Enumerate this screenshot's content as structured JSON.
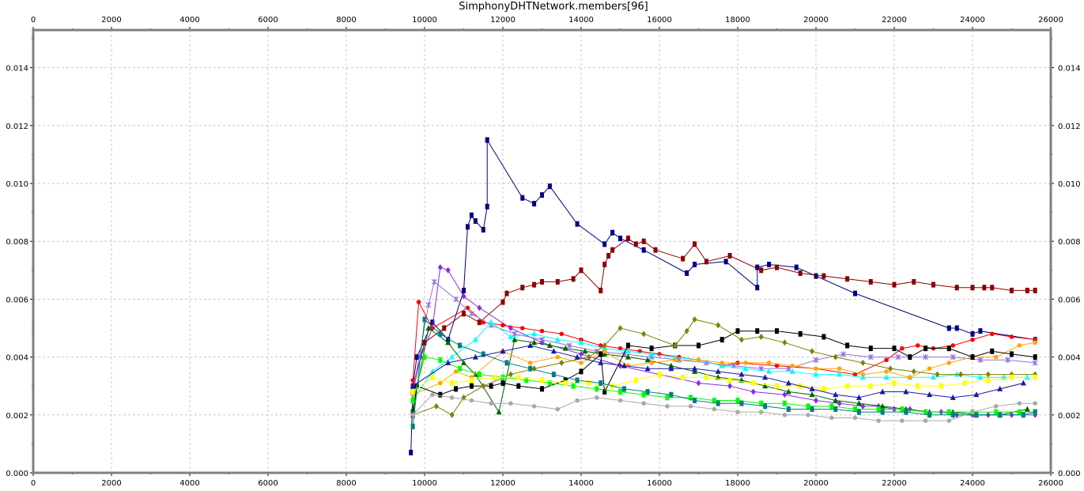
{
  "chart_data": {
    "type": "line",
    "title": "SimphonyDHTNetwork.members[96]",
    "xlabel": "",
    "ylabel": "",
    "xlim": [
      0,
      26000
    ],
    "ylim": [
      0,
      0.0153
    ],
    "x_ticks": [
      "0",
      "2000",
      "4000",
      "6000",
      "8000",
      "10000",
      "12000",
      "14000",
      "16000",
      "18000",
      "20000",
      "22000",
      "24000",
      "26000"
    ],
    "y_ticks": [
      "0.000",
      "0.002",
      "0.004",
      "0.006",
      "0.008",
      "0.010",
      "0.012",
      "0.014"
    ],
    "grid": true,
    "legend": "none",
    "frame_color": "#808080",
    "series": [
      {
        "color": "#00007f",
        "marker": "square",
        "x": [
          9650,
          9700,
          9800,
          10200,
          10600,
          11000,
          11100,
          11200,
          11300,
          11500,
          11600,
          11600,
          12500,
          12800,
          13000,
          13200,
          13900,
          14600,
          14800,
          15000,
          15600,
          16700,
          16900,
          17700,
          18500,
          18500,
          18800,
          19500,
          20000,
          21000,
          23400,
          23600,
          24000,
          24200,
          25600
        ],
        "y": [
          0.0007,
          0.003,
          0.004,
          0.0052,
          0.0046,
          0.0063,
          0.0085,
          0.0089,
          0.0087,
          0.0084,
          0.0092,
          0.0115,
          0.0095,
          0.0093,
          0.0096,
          0.0099,
          0.0086,
          0.0079,
          0.0083,
          0.0081,
          0.0077,
          0.0069,
          0.0072,
          0.0073,
          0.0064,
          0.0071,
          0.0072,
          0.0071,
          0.0068,
          0.0062,
          0.005,
          0.005,
          0.0048,
          0.0049,
          0.0046
        ]
      },
      {
        "color": "#8b0000",
        "marker": "square",
        "x": [
          9700,
          10000,
          10500,
          11000,
          11400,
          12000,
          12100,
          12500,
          12800,
          13000,
          13400,
          13800,
          14000,
          14500,
          14600,
          14700,
          14800,
          15200,
          15400,
          15600,
          15900,
          16600,
          16900,
          17200,
          17800,
          18600,
          19000,
          19600,
          20200,
          20800,
          21400,
          22000,
          22500,
          23000,
          23600,
          24000,
          24300,
          24500,
          25000,
          25400,
          25600
        ],
        "y": [
          0.003,
          0.0045,
          0.005,
          0.0055,
          0.0052,
          0.0059,
          0.0062,
          0.0064,
          0.0065,
          0.0066,
          0.0066,
          0.0067,
          0.007,
          0.0063,
          0.0072,
          0.0075,
          0.0077,
          0.0081,
          0.0079,
          0.008,
          0.0077,
          0.0074,
          0.0079,
          0.0073,
          0.0075,
          0.007,
          0.0071,
          0.0069,
          0.0068,
          0.0067,
          0.0066,
          0.0065,
          0.0066,
          0.0065,
          0.0064,
          0.0064,
          0.0064,
          0.0064,
          0.0063,
          0.0063,
          0.0063
        ]
      },
      {
        "color": "#8b2be2",
        "marker": "diamond",
        "x": [
          9700,
          9900,
          10200,
          10400,
          10600,
          11000,
          11400,
          12200,
          13000,
          14000,
          15000,
          16000,
          17000,
          17800,
          18400,
          19200,
          20000,
          20600,
          21200,
          21600,
          22000,
          22400,
          22800,
          23200,
          23600,
          24000,
          24400,
          25000,
          25600
        ],
        "y": [
          0.0028,
          0.004,
          0.005,
          0.0071,
          0.007,
          0.0061,
          0.0057,
          0.005,
          0.0045,
          0.0041,
          0.0037,
          0.0034,
          0.0031,
          0.003,
          0.0028,
          0.0027,
          0.0025,
          0.0024,
          0.0023,
          0.0023,
          0.0022,
          0.0022,
          0.0021,
          0.0021,
          0.002,
          0.002,
          0.002,
          0.002,
          0.002
        ]
      },
      {
        "color": "#ff0000",
        "marker": "circle",
        "x": [
          9700,
          9850,
          10200,
          11100,
          11500,
          12000,
          12500,
          13000,
          13500,
          14000,
          14500,
          15000,
          15500,
          16000,
          16500,
          17000,
          17600,
          18000,
          19000,
          20000,
          21000,
          21800,
          22200,
          22600,
          23000,
          23500,
          24000,
          24500,
          25000,
          25600
        ],
        "y": [
          0.0032,
          0.0059,
          0.005,
          0.0057,
          0.0052,
          0.0051,
          0.005,
          0.0049,
          0.0048,
          0.0046,
          0.0044,
          0.0043,
          0.0042,
          0.0041,
          0.004,
          0.0039,
          0.0037,
          0.0038,
          0.0037,
          0.0036,
          0.0034,
          0.0039,
          0.0043,
          0.0044,
          0.0043,
          0.0044,
          0.0046,
          0.0048,
          0.0047,
          0.0046
        ]
      },
      {
        "color": "#9370db",
        "marker": "star",
        "x": [
          9700,
          10100,
          10250,
          10800,
          11200,
          11700,
          12300,
          13000,
          13700,
          14400,
          15100,
          15800,
          16500,
          17200,
          17900,
          18600,
          19300,
          20000,
          20700,
          21400,
          22100,
          22800,
          23500,
          24200,
          24900,
          25600
        ],
        "y": [
          0.0028,
          0.0058,
          0.0066,
          0.006,
          0.0055,
          0.0051,
          0.0048,
          0.0046,
          0.0044,
          0.0042,
          0.0041,
          0.004,
          0.0039,
          0.0038,
          0.0037,
          0.0036,
          0.0036,
          0.0039,
          0.0041,
          0.004,
          0.004,
          0.004,
          0.004,
          0.0039,
          0.0039,
          0.0038
        ]
      },
      {
        "color": "#00ffff",
        "marker": "triangle",
        "x": [
          9700,
          10200,
          10700,
          11300,
          11700,
          12200,
          12800,
          13400,
          14000,
          14600,
          15200,
          15800,
          16400,
          17000,
          17600,
          18200,
          18800,
          19400,
          20000,
          20600,
          21200,
          21800,
          22400,
          23000,
          23600,
          24200,
          24800,
          25400
        ],
        "y": [
          0.0025,
          0.0035,
          0.004,
          0.0046,
          0.0052,
          0.0047,
          0.0048,
          0.0046,
          0.0045,
          0.0043,
          0.0042,
          0.0041,
          0.004,
          0.0039,
          0.0037,
          0.0036,
          0.0035,
          0.0035,
          0.0034,
          0.0034,
          0.0033,
          0.0033,
          0.0033,
          0.0033,
          0.0034,
          0.0033,
          0.0033,
          0.0033
        ]
      },
      {
        "color": "#006400",
        "marker": "triangle",
        "x": [
          9700,
          10100,
          10600,
          11000,
          11300,
          11900,
          12300,
          12800,
          13200,
          13600,
          14100,
          14600,
          15200,
          15700,
          16300,
          16900,
          17500,
          18100,
          18700,
          19300,
          19900,
          20500,
          21100,
          21700,
          22300,
          22900,
          23500,
          24100,
          24700,
          25400
        ],
        "y": [
          0.0022,
          0.005,
          0.0045,
          0.0038,
          0.0034,
          0.0021,
          0.0046,
          0.0045,
          0.0044,
          0.0043,
          0.0042,
          0.0041,
          0.004,
          0.0039,
          0.0037,
          0.0035,
          0.0033,
          0.0032,
          0.003,
          0.0028,
          0.0027,
          0.0025,
          0.0024,
          0.0023,
          0.0022,
          0.0021,
          0.0021,
          0.002,
          0.002,
          0.0022
        ]
      },
      {
        "color": "#ffa500",
        "marker": "circle",
        "x": [
          9700,
          10400,
          10800,
          11200,
          12000,
          12700,
          13400,
          14000,
          14600,
          15200,
          15800,
          16400,
          17000,
          17600,
          18200,
          18800,
          19400,
          20000,
          20600,
          21200,
          21800,
          22400,
          22900,
          23400,
          24000,
          24600,
          25200,
          25600
        ],
        "y": [
          0.0027,
          0.0031,
          0.0035,
          0.0033,
          0.0042,
          0.0038,
          0.004,
          0.0038,
          0.0042,
          0.0037,
          0.0038,
          0.0039,
          0.0039,
          0.0038,
          0.0038,
          0.0038,
          0.0037,
          0.0036,
          0.0036,
          0.0034,
          0.0035,
          0.0033,
          0.0036,
          0.0038,
          0.004,
          0.004,
          0.0044,
          0.0045
        ]
      },
      {
        "color": "#000000",
        "marker": "square",
        "x": [
          9700,
          9800,
          10400,
          10800,
          11200,
          11700,
          12000,
          12400,
          13000,
          13600,
          14000,
          14500,
          14600,
          15200,
          15800,
          16400,
          17000,
          17600,
          18000,
          18500,
          19000,
          19600,
          20200,
          20800,
          21400,
          22000,
          22400,
          22800,
          23400,
          24000,
          24500,
          25000,
          25600
        ],
        "y": [
          0.002,
          0.003,
          0.0027,
          0.0029,
          0.003,
          0.003,
          0.0031,
          0.003,
          0.0029,
          0.0032,
          0.0035,
          0.0041,
          0.0028,
          0.0044,
          0.0043,
          0.0044,
          0.0044,
          0.0046,
          0.0049,
          0.0049,
          0.0049,
          0.0048,
          0.0047,
          0.0044,
          0.0043,
          0.0043,
          0.004,
          0.0043,
          0.0043,
          0.004,
          0.0042,
          0.0041,
          0.004
        ]
      },
      {
        "color": "#808000",
        "marker": "diamond",
        "x": [
          9700,
          10300,
          10700,
          11000,
          11500,
          12200,
          12800,
          13500,
          14200,
          14600,
          15000,
          15600,
          16400,
          16700,
          16900,
          17500,
          18100,
          18600,
          19200,
          19900,
          20500,
          21200,
          21900,
          22500,
          23100,
          23700,
          24400,
          25000,
          25600
        ],
        "y": [
          0.002,
          0.0023,
          0.002,
          0.0026,
          0.003,
          0.0034,
          0.0036,
          0.0038,
          0.004,
          0.0044,
          0.005,
          0.0048,
          0.0044,
          0.0049,
          0.0053,
          0.0051,
          0.0046,
          0.0047,
          0.0045,
          0.0042,
          0.004,
          0.0038,
          0.0036,
          0.0035,
          0.0034,
          0.0034,
          0.0034,
          0.0034,
          0.0034
        ]
      },
      {
        "color": "#00ff00",
        "marker": "square",
        "x": [
          9700,
          10000,
          10400,
          10900,
          11400,
          12000,
          12600,
          13200,
          13800,
          14400,
          15000,
          15600,
          16200,
          16800,
          17400,
          18000,
          18600,
          19200,
          19800,
          20400,
          21000,
          21600,
          22200,
          22800,
          23400,
          24000,
          24600,
          25200,
          25600
        ],
        "y": [
          0.0025,
          0.004,
          0.0039,
          0.0036,
          0.0034,
          0.0033,
          0.0032,
          0.0031,
          0.003,
          0.0029,
          0.0028,
          0.0027,
          0.0026,
          0.0026,
          0.0025,
          0.0025,
          0.0024,
          0.0024,
          0.0023,
          0.0023,
          0.0022,
          0.0022,
          0.0022,
          0.0021,
          0.0021,
          0.0021,
          0.0021,
          0.0021,
          0.0021
        ]
      },
      {
        "color": "#ffff00",
        "marker": "square",
        "x": [
          9700,
          10200,
          10700,
          11200,
          11800,
          12400,
          13000,
          13600,
          14200,
          14800,
          15400,
          16000,
          16600,
          17200,
          17800,
          18400,
          19000,
          19600,
          20200,
          20800,
          21400,
          22000,
          22600,
          23200,
          23800,
          24400,
          25000,
          25600
        ],
        "y": [
          0.0028,
          0.0033,
          0.0031,
          0.0032,
          0.0033,
          0.0033,
          0.0032,
          0.0031,
          0.0031,
          0.003,
          0.0032,
          0.0034,
          0.0033,
          0.0033,
          0.0032,
          0.0031,
          0.003,
          0.003,
          0.0029,
          0.003,
          0.003,
          0.0031,
          0.003,
          0.003,
          0.0031,
          0.0032,
          0.0033,
          0.0033
        ]
      },
      {
        "color": "#008080",
        "marker": "square",
        "x": [
          9700,
          10000,
          10400,
          10900,
          11500,
          12100,
          12700,
          13300,
          13900,
          14500,
          15100,
          15700,
          16300,
          16900,
          17500,
          18100,
          18700,
          19300,
          19900,
          20500,
          21100,
          21700,
          22300,
          22900,
          23500,
          24100,
          24700,
          25300,
          25600
        ],
        "y": [
          0.0016,
          0.0053,
          0.0048,
          0.0044,
          0.0041,
          0.0038,
          0.0036,
          0.0034,
          0.0032,
          0.0031,
          0.0029,
          0.0028,
          0.0027,
          0.0025,
          0.0024,
          0.0024,
          0.0023,
          0.0022,
          0.0022,
          0.0022,
          0.0021,
          0.0021,
          0.0021,
          0.002,
          0.002,
          0.002,
          0.002,
          0.002,
          0.0021
        ]
      },
      {
        "color": "#a9a9a9",
        "marker": "circle",
        "x": [
          9700,
          10200,
          10700,
          11200,
          11700,
          12200,
          12800,
          13400,
          13900,
          14400,
          15000,
          15600,
          16200,
          16800,
          17400,
          18000,
          18600,
          19200,
          19800,
          20400,
          21000,
          21600,
          22200,
          22800,
          23400,
          24000,
          24600,
          25200,
          25600
        ],
        "y": [
          0.002,
          0.0027,
          0.0026,
          0.0025,
          0.0024,
          0.0024,
          0.0023,
          0.0022,
          0.0025,
          0.0026,
          0.0025,
          0.0024,
          0.0023,
          0.0023,
          0.0022,
          0.0021,
          0.0021,
          0.002,
          0.002,
          0.0019,
          0.0019,
          0.0018,
          0.0018,
          0.0018,
          0.0018,
          0.0021,
          0.0023,
          0.0024,
          0.0024
        ]
      },
      {
        "color": "#1a1aa0",
        "marker": "triangle",
        "x": [
          9700,
          10600,
          11300,
          12000,
          12700,
          13300,
          13900,
          14500,
          15100,
          15700,
          16300,
          16900,
          17500,
          18100,
          18700,
          19300,
          19900,
          20500,
          21100,
          21700,
          22300,
          22900,
          23500,
          24100,
          24700,
          25300
        ],
        "y": [
          0.003,
          0.0038,
          0.004,
          0.0042,
          0.0044,
          0.0042,
          0.004,
          0.0038,
          0.0037,
          0.0036,
          0.0036,
          0.0036,
          0.0035,
          0.0034,
          0.0033,
          0.0031,
          0.0029,
          0.0027,
          0.0026,
          0.0028,
          0.0028,
          0.0027,
          0.0026,
          0.0027,
          0.0029,
          0.0031
        ]
      }
    ]
  }
}
